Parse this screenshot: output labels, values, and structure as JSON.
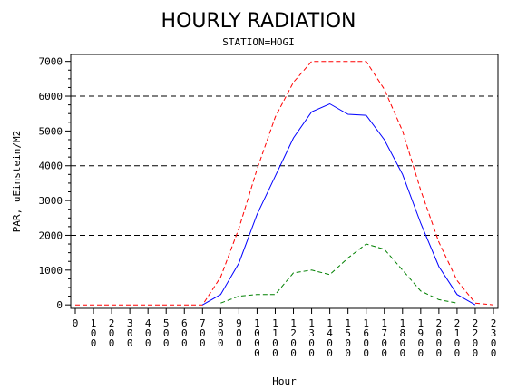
{
  "chart_data": {
    "type": "line",
    "title": "HOURLY RADIATION",
    "subtitle": "STATION=HOGI",
    "xlabel": "Hour",
    "ylabel": "PAR, uEinstein/M2",
    "xlim": [
      0,
      2300
    ],
    "ylim": [
      -100,
      7200
    ],
    "x_ticks": [
      0,
      100,
      200,
      300,
      400,
      500,
      600,
      700,
      800,
      900,
      1000,
      1100,
      1200,
      1300,
      1400,
      1500,
      1600,
      1700,
      1800,
      1900,
      2000,
      2100,
      2200,
      2300
    ],
    "y_ticks": [
      0,
      1000,
      2000,
      3000,
      4000,
      5000,
      6000,
      7000
    ],
    "reference_lines_y": [
      2000,
      4000,
      6000
    ],
    "grid": false,
    "legend": "none",
    "series": [
      {
        "color": "#ff0000",
        "dash": "dashed",
        "x": [
          0,
          100,
          200,
          300,
          400,
          500,
          600,
          700,
          800,
          900,
          1000,
          1100,
          1200,
          1300,
          1400,
          1500,
          1600,
          1700,
          1800,
          1900,
          2000,
          2100,
          2200,
          2300
        ],
        "values": [
          0,
          0,
          0,
          0,
          0,
          0,
          0,
          0,
          800,
          2200,
          3900,
          5400,
          6400,
          7000,
          7000,
          7000,
          7000,
          6200,
          5000,
          3300,
          1800,
          700,
          50,
          0
        ]
      },
      {
        "color": "#0000ff",
        "dash": "solid",
        "x": [
          700,
          800,
          900,
          1000,
          1100,
          1200,
          1300,
          1400,
          1500,
          1600,
          1700,
          1800,
          1900,
          2000,
          2100,
          2200
        ],
        "values": [
          0,
          300,
          1200,
          2600,
          3700,
          4800,
          5550,
          5780,
          5480,
          5450,
          4750,
          3750,
          2350,
          1100,
          300,
          0
        ]
      },
      {
        "color": "#008000",
        "dash": "dashed",
        "x": [
          800,
          900,
          1000,
          1100,
          1200,
          1300,
          1400,
          1500,
          1600,
          1700,
          1800,
          1900,
          2000,
          2100
        ],
        "values": [
          50,
          250,
          300,
          300,
          920,
          1000,
          870,
          1350,
          1750,
          1600,
          1000,
          400,
          150,
          50
        ]
      }
    ]
  }
}
